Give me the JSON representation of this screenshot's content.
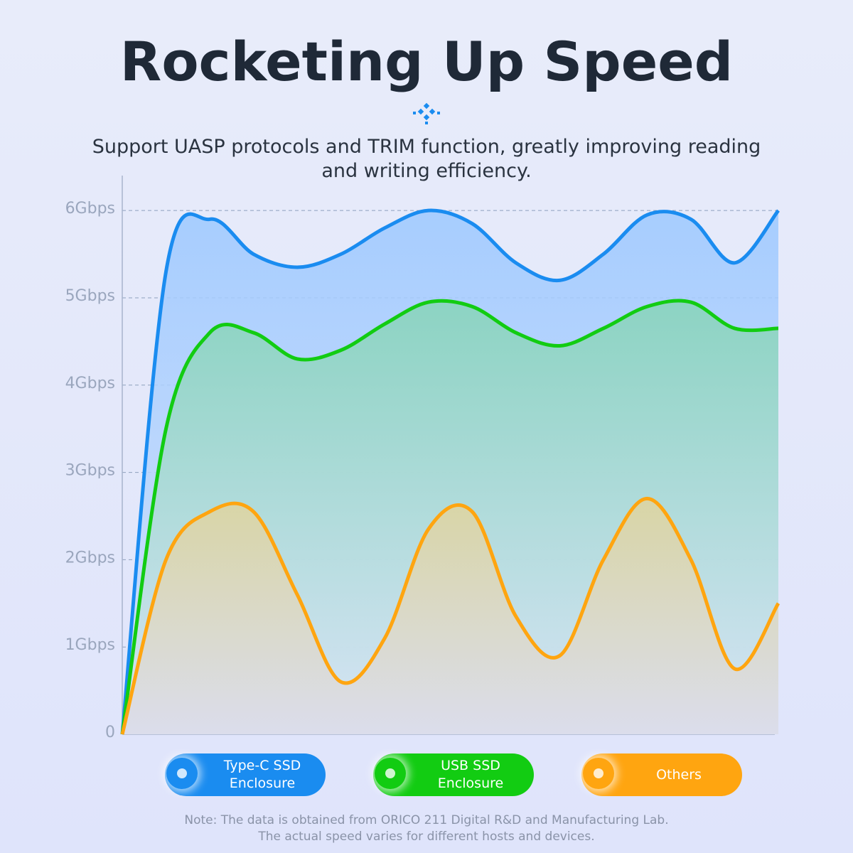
{
  "chart_data": {
    "type": "area",
    "title": "Rocketing Up Speed",
    "subtitle": "Support UASP protocols and TRIM function, greatly improving reading and writing efficiency.",
    "note": [
      "Note: The data is obtained from ORICO 211 Digital R&D and Manufacturing Lab.",
      "The actual speed varies for different hosts and devices."
    ],
    "categories": [
      null,
      null,
      null,
      null,
      null,
      null,
      null,
      null,
      null,
      null,
      null,
      null,
      null,
      null,
      null,
      null
    ],
    "series": [
      {
        "name": "Type-C SSD Enclosure",
        "color": "#1a8cf0",
        "values": [
          0,
          5.3,
          5.9,
          5.5,
          5.35,
          5.5,
          5.8,
          6.0,
          5.85,
          5.4,
          5.2,
          5.5,
          5.95,
          5.9,
          5.4,
          6.0
        ]
      },
      {
        "name": "USB SSD Enclosure",
        "color": "#12cc12",
        "values": [
          0,
          3.5,
          4.6,
          4.6,
          4.3,
          4.4,
          4.7,
          4.95,
          4.9,
          4.6,
          4.45,
          4.65,
          4.9,
          4.95,
          4.65,
          4.65
        ]
      },
      {
        "name": "Others",
        "color": "#ffa510",
        "values": [
          0,
          2.0,
          2.55,
          2.55,
          1.6,
          0.6,
          1.1,
          2.35,
          2.55,
          1.35,
          0.9,
          2.0,
          2.7,
          2.0,
          0.75,
          1.5
        ]
      }
    ],
    "ylim": [
      0,
      6.4
    ],
    "yticks": [
      0,
      {
        "value": 1,
        "label": "1Gbps"
      },
      {
        "value": 2,
        "label": "2Gbps"
      },
      {
        "value": 3,
        "label": "3Gbps"
      },
      {
        "value": 4,
        "label": "4Gbps"
      },
      {
        "value": 5,
        "label": "5Gbps"
      },
      {
        "value": 6,
        "label": "6Gbps"
      }
    ],
    "grid": true
  }
}
